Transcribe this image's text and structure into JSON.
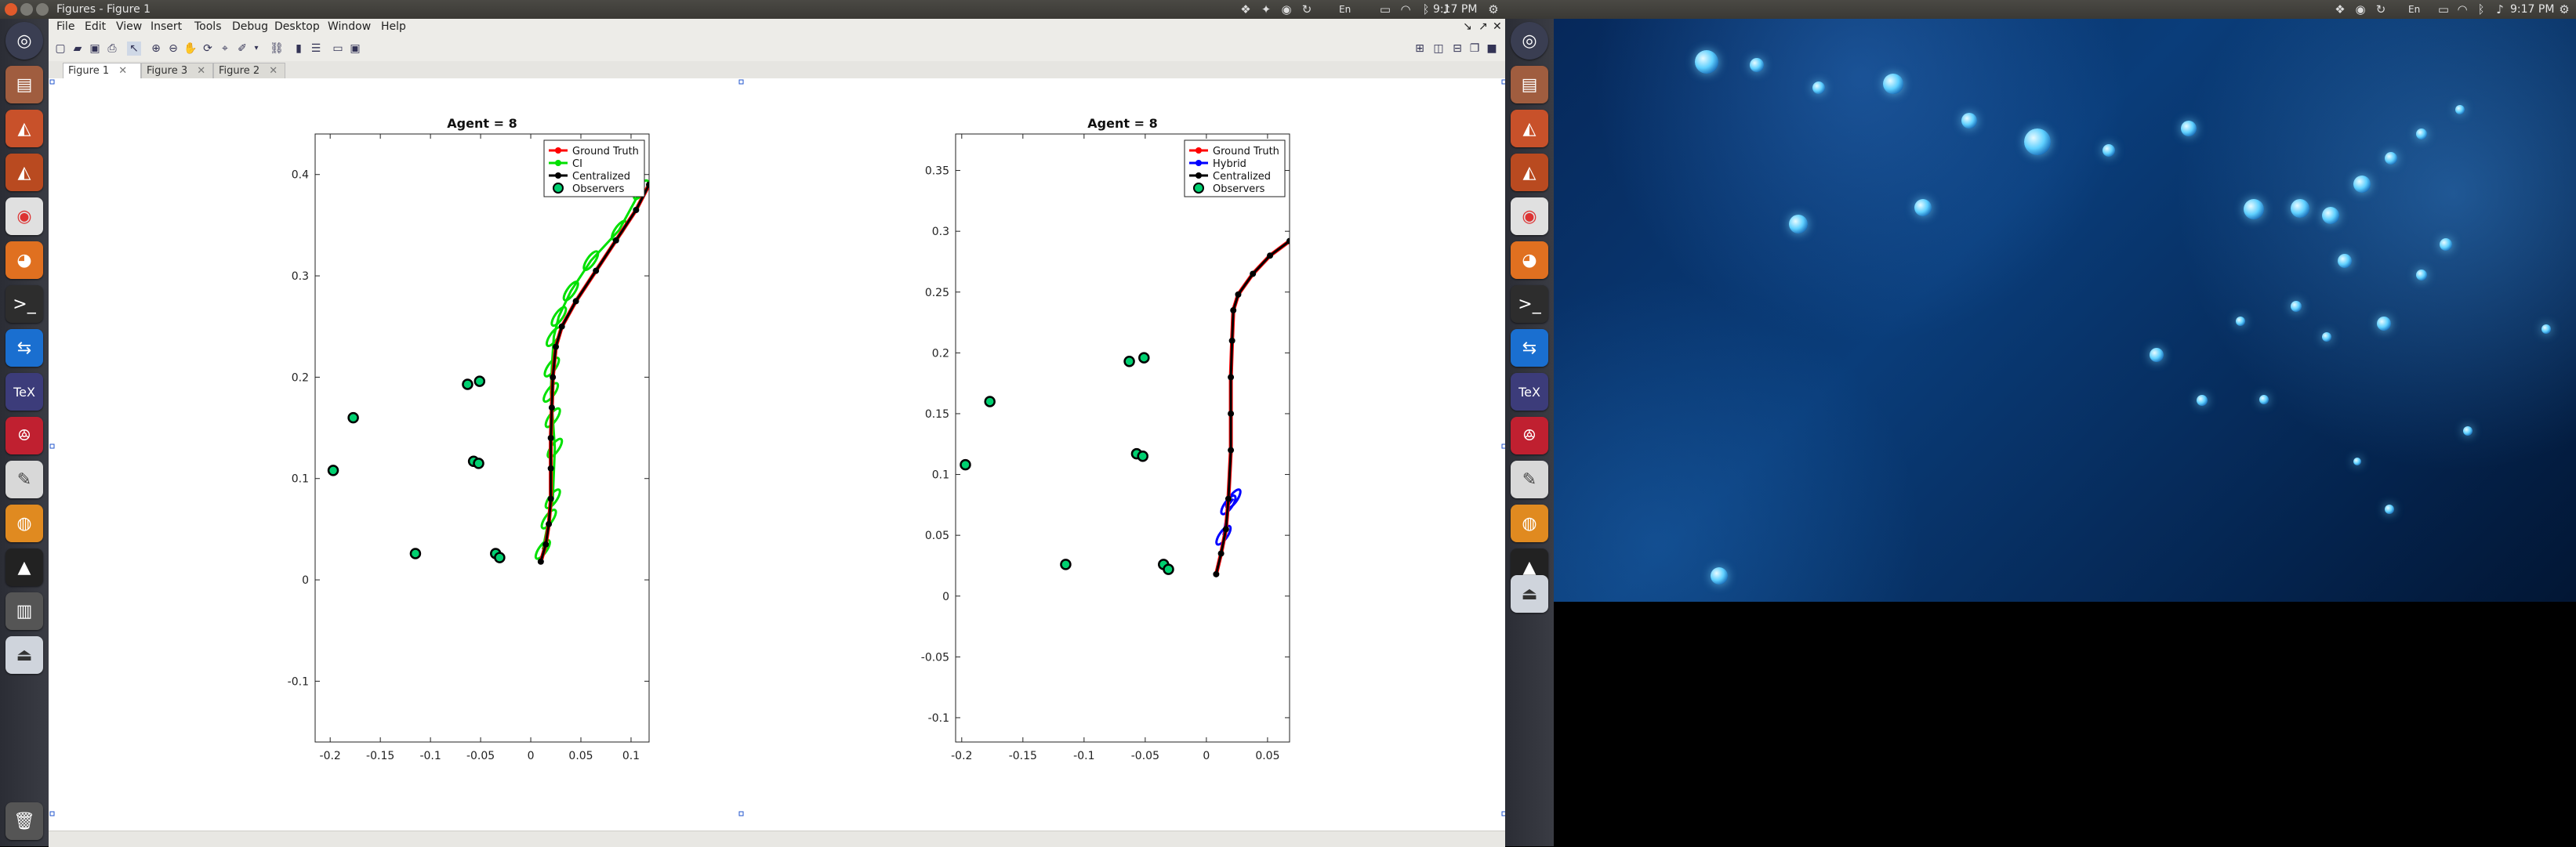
{
  "topbar": {
    "title": "Figures - Figure 1",
    "time_left": "9:17 PM",
    "time_right": "9:17 PM",
    "keyboard_left": "En",
    "keyboard_right": "En"
  },
  "menu": [
    "File",
    "Edit",
    "View",
    "Insert",
    "Tools",
    "Debug",
    "Desktop",
    "Window",
    "Help"
  ],
  "tabs": [
    {
      "label": "Figure 1",
      "active": true
    },
    {
      "label": "Figure 3",
      "active": false
    },
    {
      "label": "Figure 2",
      "active": false
    }
  ],
  "launcher_icons": [
    "ubuntu-dash",
    "files",
    "matlab",
    "matlab-2",
    "chrome",
    "firefox",
    "terminal",
    "teamviewer",
    "texmaker",
    "mendeley",
    "text-editor",
    "blender",
    "inkscape",
    "files-2",
    "drive"
  ],
  "chart_data": [
    {
      "type": "line",
      "title": "Agent = 8",
      "xlim": [
        -0.215,
        0.118
      ],
      "ylim": [
        -0.16,
        0.44
      ],
      "xticks": [
        -0.2,
        -0.15,
        -0.1,
        -0.05,
        0,
        0.05,
        0.1
      ],
      "xtick_labels": [
        "-0.2",
        "-0.15",
        "-0.1",
        "-0.05",
        "0",
        "0.05",
        "0.1"
      ],
      "yticks": [
        -0.1,
        0,
        0.1,
        0.2,
        0.3,
        0.4
      ],
      "ytick_labels": [
        "-0.1",
        "0",
        "0.1",
        "0.2",
        "0.3",
        "0.4"
      ],
      "legend": [
        "Ground Truth",
        "CI",
        "Centralized",
        "Observers"
      ],
      "legend_position": "top-right",
      "colors": {
        "ground_truth": "#ff0000",
        "estimate": "#00e000",
        "centralized": "#000000",
        "observer_fill": "#00d070"
      },
      "series": [
        {
          "name": "Ground Truth",
          "x": [
            0.01,
            0.015,
            0.018,
            0.02,
            0.02,
            0.02,
            0.021,
            0.022,
            0.025,
            0.031,
            0.045,
            0.065,
            0.085,
            0.105,
            0.118
          ],
          "y": [
            0.018,
            0.035,
            0.055,
            0.08,
            0.11,
            0.14,
            0.17,
            0.2,
            0.23,
            0.25,
            0.275,
            0.305,
            0.335,
            0.365,
            0.39
          ]
        },
        {
          "name": "Centralized",
          "x": [
            0.01,
            0.015,
            0.018,
            0.02,
            0.02,
            0.02,
            0.021,
            0.022,
            0.025,
            0.031,
            0.045,
            0.065,
            0.085,
            0.105,
            0.118
          ],
          "y": [
            0.018,
            0.035,
            0.055,
            0.08,
            0.11,
            0.14,
            0.17,
            0.2,
            0.23,
            0.25,
            0.275,
            0.305,
            0.335,
            0.365,
            0.39
          ]
        },
        {
          "name": "CI",
          "x": [
            0.012,
            0.018,
            0.022,
            0.024,
            0.022,
            0.02,
            0.021,
            0.023,
            0.028,
            0.04,
            0.06,
            0.088,
            0.11
          ],
          "y": [
            0.03,
            0.06,
            0.08,
            0.13,
            0.16,
            0.185,
            0.21,
            0.24,
            0.26,
            0.285,
            0.315,
            0.345,
            0.385
          ]
        }
      ],
      "observers": {
        "x": [
          -0.197,
          -0.177,
          -0.115,
          -0.063,
          -0.051,
          -0.057,
          -0.052,
          -0.035,
          -0.031
        ],
        "y": [
          0.108,
          0.16,
          0.026,
          0.193,
          0.196,
          0.117,
          0.115,
          0.026,
          0.022
        ]
      }
    },
    {
      "type": "line",
      "title": "Agent = 8",
      "xlim": [
        -0.205,
        0.068
      ],
      "ylim": [
        -0.12,
        0.38
      ],
      "xticks": [
        -0.2,
        -0.15,
        -0.1,
        -0.05,
        0,
        0.05
      ],
      "xtick_labels": [
        "-0.2",
        "-0.15",
        "-0.1",
        "-0.05",
        "0",
        "0.05"
      ],
      "yticks": [
        -0.1,
        -0.05,
        0,
        0.05,
        0.1,
        0.15,
        0.2,
        0.25,
        0.3,
        0.35
      ],
      "ytick_labels": [
        "-0.1",
        "-0.05",
        "0",
        "0.05",
        "0.1",
        "0.15",
        "0.2",
        "0.25",
        "0.3",
        "0.35"
      ],
      "legend": [
        "Ground Truth",
        "Hybrid",
        "Centralized",
        "Observers"
      ],
      "legend_position": "top-right",
      "colors": {
        "ground_truth": "#ff0000",
        "estimate": "#0000ff",
        "centralized": "#000000",
        "observer_fill": "#00d070"
      },
      "series": [
        {
          "name": "Ground Truth",
          "x": [
            0.008,
            0.012,
            0.016,
            0.018,
            0.02,
            0.02,
            0.02,
            0.021,
            0.022,
            0.026,
            0.038,
            0.052,
            0.068
          ],
          "y": [
            0.018,
            0.035,
            0.055,
            0.08,
            0.12,
            0.15,
            0.18,
            0.21,
            0.235,
            0.248,
            0.265,
            0.28,
            0.292
          ]
        },
        {
          "name": "Centralized",
          "x": [
            0.008,
            0.012,
            0.016,
            0.018,
            0.02,
            0.02,
            0.02,
            0.021,
            0.022,
            0.026,
            0.038,
            0.052,
            0.068
          ],
          "y": [
            0.018,
            0.035,
            0.055,
            0.08,
            0.12,
            0.15,
            0.18,
            0.21,
            0.235,
            0.248,
            0.265,
            0.28,
            0.292
          ]
        },
        {
          "name": "Hybrid",
          "x": [
            0.014,
            0.018,
            0.022
          ],
          "y": [
            0.05,
            0.075,
            0.08
          ]
        }
      ],
      "observers": {
        "x": [
          -0.197,
          -0.177,
          -0.115,
          -0.063,
          -0.051,
          -0.057,
          -0.052,
          -0.035,
          -0.031
        ],
        "y": [
          0.108,
          0.16,
          0.026,
          0.193,
          0.196,
          0.117,
          0.115,
          0.026,
          0.022
        ]
      }
    }
  ]
}
